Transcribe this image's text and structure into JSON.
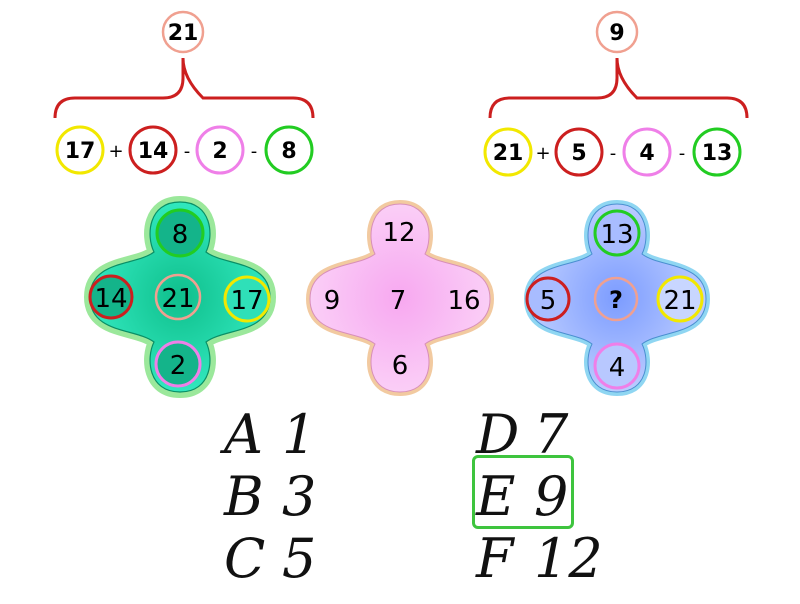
{
  "examples": [
    {
      "result": "21",
      "terms": [
        {
          "value": "17",
          "color": "#f2e800"
        },
        {
          "value": "14",
          "color": "#cc1f1f"
        },
        {
          "value": "2",
          "color": "#ef7fe8"
        },
        {
          "value": "8",
          "color": "#22cc22"
        }
      ],
      "operators": [
        "+",
        "-",
        "-"
      ]
    },
    {
      "result": "9",
      "terms": [
        {
          "value": "21",
          "color": "#f2e800"
        },
        {
          "value": "5",
          "color": "#cc1f1f"
        },
        {
          "value": "4",
          "color": "#ef7fe8"
        },
        {
          "value": "13",
          "color": "#22cc22"
        }
      ],
      "operators": [
        "+",
        "-",
        "-"
      ]
    }
  ],
  "puzzles": [
    {
      "top": "8",
      "left": "14",
      "center": "21",
      "right": "17",
      "bottom": "2",
      "fill": "#1fd4a8",
      "halo": "#9be89b"
    },
    {
      "top": "12",
      "left": "9",
      "center": "7",
      "right": "16",
      "bottom": "6",
      "fill": "#f8b0f2",
      "halo": "#f2caa0"
    },
    {
      "top": "13",
      "left": "5",
      "center": "?",
      "right": "21",
      "bottom": "4",
      "fill": "#9cb4ff",
      "halo": "#8fd6f2"
    }
  ],
  "answers": [
    {
      "letter": "A",
      "value": "1"
    },
    {
      "letter": "B",
      "value": "3"
    },
    {
      "letter": "C",
      "value": "5"
    },
    {
      "letter": "D",
      "value": "7"
    },
    {
      "letter": "E",
      "value": "9",
      "highlighted": true
    },
    {
      "letter": "F",
      "value": "12"
    }
  ],
  "colors": {
    "result_ring": "#f0a090",
    "brace": "#cc1f1f",
    "center_ring": "#f0a090",
    "answer_highlight": "#3ec43e"
  }
}
